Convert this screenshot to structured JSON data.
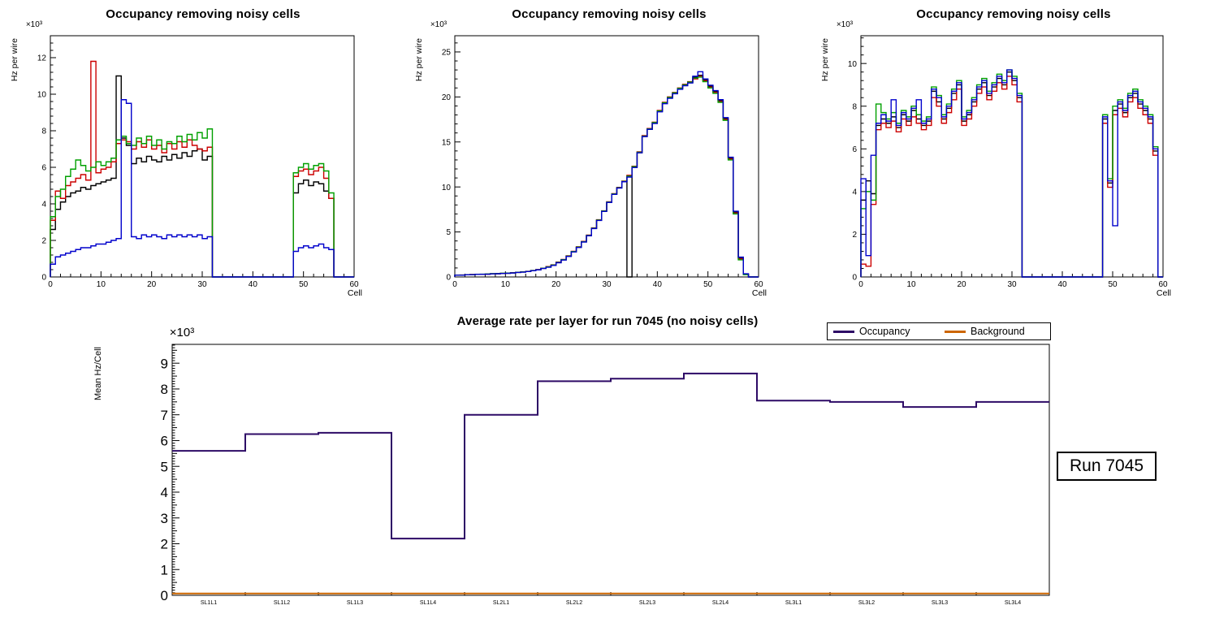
{
  "page": {
    "background": "#ffffff"
  },
  "annotation": {
    "run_label": "Run 7045"
  },
  "chart_data": [
    {
      "type": "histogram-step",
      "title": "Occupancy removing noisy cells",
      "ylabel": "Hz per wire",
      "xlabel": "Cell",
      "exponent": "×10³",
      "values_scale": "×10³",
      "xlim": [
        0,
        60
      ],
      "ylim": [
        0,
        13.2
      ],
      "xticks": {
        "major": 10,
        "minor": 2
      },
      "yticks": {
        "major": 2,
        "minor": 0.4
      },
      "series": [
        {
          "name": "black",
          "color": "#000000",
          "values": [
            2.6,
            3.7,
            4.1,
            4.4,
            4.6,
            4.7,
            4.9,
            4.8,
            5.0,
            5.1,
            5.2,
            5.3,
            5.4,
            11.0,
            7.6,
            7.2,
            6.2,
            6.5,
            6.3,
            6.6,
            6.4,
            6.3,
            6.6,
            6.4,
            6.7,
            6.5,
            6.8,
            6.6,
            6.9,
            7.0,
            6.4,
            6.6,
            0,
            0,
            0,
            0,
            0,
            0,
            0,
            0,
            0,
            0,
            0,
            0,
            0,
            0,
            0,
            0,
            4.6,
            5.1,
            5.3,
            5.0,
            5.2,
            5.1,
            4.7,
            4.3,
            0,
            0,
            0,
            0
          ]
        },
        {
          "name": "red",
          "color": "#cc0000",
          "values": [
            3.1,
            4.7,
            4.3,
            5.0,
            5.2,
            5.4,
            5.6,
            5.3,
            11.8,
            5.7,
            5.9,
            6.0,
            6.3,
            7.3,
            7.5,
            7.4,
            7.0,
            7.4,
            7.1,
            7.5,
            7.0,
            7.2,
            6.8,
            7.3,
            7.0,
            7.4,
            7.1,
            7.5,
            7.2,
            7.0,
            6.9,
            7.1,
            0,
            0,
            0,
            0,
            0,
            0,
            0,
            0,
            0,
            0,
            0,
            0,
            0,
            0,
            0,
            0,
            5.5,
            5.8,
            5.9,
            5.6,
            5.8,
            6.0,
            5.4,
            4.3,
            0,
            0,
            0,
            0
          ]
        },
        {
          "name": "green",
          "color": "#00a000",
          "values": [
            3.3,
            4.4,
            4.8,
            5.5,
            5.9,
            6.4,
            6.1,
            5.8,
            6.0,
            6.3,
            6.1,
            6.3,
            6.5,
            7.5,
            7.7,
            7.3,
            7.2,
            7.6,
            7.3,
            7.7,
            7.2,
            7.5,
            7.0,
            7.4,
            7.3,
            7.7,
            7.4,
            7.8,
            7.5,
            7.9,
            7.6,
            8.1,
            0,
            0,
            0,
            0,
            0,
            0,
            0,
            0,
            0,
            0,
            0,
            0,
            0,
            0,
            0,
            0,
            5.7,
            6.0,
            6.2,
            5.9,
            6.1,
            6.2,
            5.8,
            4.6,
            0,
            0,
            0,
            0
          ]
        },
        {
          "name": "blue",
          "color": "#0000cc",
          "values": [
            0.7,
            1.1,
            1.2,
            1.3,
            1.4,
            1.5,
            1.6,
            1.6,
            1.7,
            1.8,
            1.8,
            1.9,
            2.0,
            2.1,
            9.7,
            9.5,
            2.2,
            2.1,
            2.3,
            2.2,
            2.3,
            2.2,
            2.1,
            2.3,
            2.2,
            2.3,
            2.2,
            2.3,
            2.2,
            2.3,
            2.1,
            2.2,
            0,
            0,
            0,
            0,
            0,
            0,
            0,
            0,
            0,
            0,
            0,
            0,
            0,
            0,
            0,
            0,
            1.4,
            1.6,
            1.7,
            1.6,
            1.7,
            1.8,
            1.6,
            1.5,
            0,
            0,
            0,
            0
          ]
        }
      ]
    },
    {
      "type": "histogram-step",
      "title": "Occupancy removing noisy cells",
      "ylabel": "Hz per wire",
      "xlabel": "Cell",
      "exponent": "×10³",
      "values_scale": "×10³",
      "xlim": [
        0,
        60
      ],
      "ylim": [
        0,
        26.8
      ],
      "xticks": {
        "major": 10,
        "minor": 2
      },
      "yticks": {
        "major": 5,
        "minor": 1
      },
      "series": [
        {
          "name": "black",
          "color": "#000000",
          "values": [
            0.2,
            0.2,
            0.25,
            0.25,
            0.3,
            0.3,
            0.3,
            0.35,
            0.35,
            0.4,
            0.4,
            0.45,
            0.5,
            0.55,
            0.6,
            0.7,
            0.8,
            0.95,
            1.1,
            1.3,
            1.6,
            1.9,
            2.3,
            2.8,
            3.3,
            3.9,
            4.6,
            5.4,
            6.3,
            7.3,
            8.3,
            9.2,
            9.9,
            10.6,
            0,
            12.2,
            13.8,
            15.6,
            16.4,
            17.1,
            18.4,
            19.3,
            19.9,
            20.4,
            20.9,
            21.3,
            21.6,
            22.2,
            22.4,
            21.9,
            21.2,
            20.6,
            19.6,
            17.6,
            13.2,
            7.2,
            2.1,
            0.3,
            0,
            0
          ]
        },
        {
          "name": "red",
          "color": "#cc0000",
          "values": [
            0.2,
            0.22,
            0.25,
            0.27,
            0.3,
            0.3,
            0.32,
            0.35,
            0.37,
            0.4,
            0.42,
            0.47,
            0.52,
            0.57,
            0.62,
            0.72,
            0.82,
            0.97,
            1.15,
            1.35,
            1.65,
            1.95,
            2.35,
            2.85,
            3.35,
            3.95,
            4.65,
            5.45,
            6.35,
            7.35,
            8.35,
            9.25,
            9.95,
            10.65,
            11.3,
            12.3,
            13.9,
            15.7,
            16.5,
            17.2,
            18.5,
            19.4,
            20.0,
            20.5,
            21.0,
            21.4,
            21.7,
            22.0,
            22.3,
            21.8,
            21.1,
            20.5,
            19.5,
            17.5,
            13.1,
            7.1,
            2.0,
            0.3,
            0,
            0
          ]
        },
        {
          "name": "green",
          "color": "#00a000",
          "values": [
            0.2,
            0.21,
            0.24,
            0.26,
            0.29,
            0.31,
            0.33,
            0.36,
            0.38,
            0.41,
            0.43,
            0.46,
            0.51,
            0.56,
            0.61,
            0.71,
            0.81,
            0.96,
            1.12,
            1.32,
            1.62,
            1.92,
            2.32,
            2.82,
            3.32,
            3.92,
            4.62,
            5.42,
            6.32,
            7.32,
            8.32,
            9.22,
            9.92,
            10.62,
            11.2,
            12.25,
            13.85,
            15.65,
            16.45,
            17.15,
            18.45,
            19.35,
            19.95,
            20.45,
            20.95,
            21.35,
            21.65,
            22.1,
            22.2,
            21.7,
            21.0,
            20.4,
            19.4,
            17.4,
            13.0,
            7.0,
            1.9,
            0.25,
            0,
            0
          ]
        },
        {
          "name": "blue",
          "color": "#0000cc",
          "values": [
            0.2,
            0.2,
            0.24,
            0.25,
            0.29,
            0.3,
            0.31,
            0.34,
            0.36,
            0.39,
            0.41,
            0.44,
            0.5,
            0.54,
            0.6,
            0.69,
            0.79,
            0.94,
            1.08,
            1.28,
            1.58,
            1.88,
            2.28,
            2.78,
            3.28,
            3.88,
            4.58,
            5.38,
            6.28,
            7.28,
            8.28,
            9.18,
            9.88,
            10.58,
            11.1,
            12.15,
            13.8,
            15.6,
            16.4,
            17.05,
            18.35,
            19.25,
            19.85,
            20.35,
            20.85,
            21.25,
            21.55,
            22.3,
            22.8,
            22.0,
            21.3,
            20.7,
            19.7,
            17.7,
            13.3,
            7.3,
            2.2,
            0.35,
            0,
            0
          ]
        }
      ]
    },
    {
      "type": "histogram-step",
      "title": "Occupancy removing noisy cells",
      "ylabel": "Hz per wire",
      "xlabel": "Cell",
      "exponent": "×10³",
      "values_scale": "×10³",
      "xlim": [
        0,
        60
      ],
      "ylim": [
        0,
        11.3
      ],
      "xticks": {
        "major": 10,
        "minor": 2
      },
      "yticks": {
        "major": 2,
        "minor": 0.4
      },
      "series": [
        {
          "name": "black",
          "color": "#000000",
          "values": [
            3.6,
            4.5,
            3.9,
            7.1,
            7.4,
            7.2,
            7.5,
            7.0,
            7.6,
            7.3,
            7.8,
            7.4,
            7.1,
            7.3,
            8.7,
            8.2,
            7.4,
            7.9,
            8.6,
            9.0,
            7.3,
            7.6,
            8.2,
            8.8,
            9.1,
            8.5,
            8.9,
            9.3,
            9.0,
            9.6,
            9.2,
            8.4,
            0,
            0,
            0,
            0,
            0,
            0,
            0,
            0,
            0,
            0,
            0,
            0,
            0,
            0,
            0,
            0,
            7.4,
            4.4,
            7.8,
            8.1,
            7.7,
            8.4,
            8.6,
            8.1,
            7.8,
            7.4,
            5.9,
            0
          ]
        },
        {
          "name": "red",
          "color": "#cc0000",
          "values": [
            0.6,
            0.5,
            3.4,
            6.9,
            7.2,
            7.0,
            7.3,
            6.8,
            7.4,
            7.1,
            7.5,
            7.2,
            6.9,
            7.1,
            8.4,
            8.0,
            7.2,
            7.7,
            8.3,
            8.8,
            7.1,
            7.4,
            8.0,
            8.6,
            8.9,
            8.3,
            8.7,
            9.1,
            8.8,
            9.4,
            9.0,
            8.2,
            0,
            0,
            0,
            0,
            0,
            0,
            0,
            0,
            0,
            0,
            0,
            0,
            0,
            0,
            0,
            0,
            7.2,
            4.2,
            7.6,
            7.9,
            7.5,
            8.2,
            8.4,
            7.9,
            7.6,
            7.2,
            5.7,
            0
          ]
        },
        {
          "name": "green",
          "color": "#00a000",
          "values": [
            3.2,
            4.0,
            3.6,
            8.1,
            7.7,
            7.4,
            7.7,
            7.2,
            7.8,
            7.5,
            8.0,
            7.6,
            7.3,
            7.5,
            8.9,
            8.5,
            7.6,
            8.1,
            8.8,
            9.2,
            7.5,
            7.8,
            8.4,
            9.0,
            9.3,
            8.7,
            9.1,
            9.5,
            9.2,
            9.7,
            9.4,
            8.6,
            0,
            0,
            0,
            0,
            0,
            0,
            0,
            0,
            0,
            0,
            0,
            0,
            0,
            0,
            0,
            0,
            7.6,
            4.6,
            8.0,
            8.3,
            7.9,
            8.6,
            8.8,
            8.3,
            8.0,
            7.6,
            6.1,
            0
          ]
        },
        {
          "name": "blue",
          "color": "#0000cc",
          "values": [
            4.6,
            1.0,
            5.7,
            7.2,
            7.6,
            7.3,
            8.3,
            7.1,
            7.7,
            7.4,
            7.9,
            8.3,
            7.2,
            7.4,
            8.8,
            8.4,
            7.5,
            8.0,
            8.7,
            9.1,
            7.4,
            7.7,
            8.3,
            8.9,
            9.2,
            8.6,
            9.0,
            9.4,
            9.1,
            9.7,
            9.3,
            8.5,
            0,
            0,
            0,
            0,
            0,
            0,
            0,
            0,
            0,
            0,
            0,
            0,
            0,
            0,
            0,
            0,
            7.5,
            4.5,
            2.4,
            8.2,
            7.8,
            8.5,
            8.7,
            8.2,
            7.9,
            7.5,
            6.0,
            0
          ]
        }
      ]
    },
    {
      "type": "category-step",
      "title": "Average rate per layer for run 7045 (no noisy cells)",
      "ylabel": "Mean Hz/Cell",
      "exponent": "×10³",
      "values_scale": "×10³",
      "categories": [
        "SL1L1",
        "SL1L2",
        "SL1L3",
        "SL1L4",
        "SL2L1",
        "SL2L2",
        "SL2L3",
        "SL2L4",
        "SL3L1",
        "SL3L2",
        "SL3L3",
        "SL3L4"
      ],
      "ylim": [
        0,
        9.73
      ],
      "yticks": {
        "major": 1,
        "mid": 0.5,
        "minor": 0.1
      },
      "legend": [
        {
          "label": "Occupancy",
          "color": "#2d0a66"
        },
        {
          "label": "Background",
          "color": "#cc6600"
        }
      ],
      "series": [
        {
          "name": "Occupancy",
          "color": "#2d0a66",
          "values": [
            5.6,
            6.25,
            6.3,
            2.2,
            7.0,
            8.3,
            8.4,
            8.6,
            7.55,
            7.5,
            7.3,
            7.5
          ]
        },
        {
          "name": "Background",
          "color": "#cc6600",
          "values": [
            0.07,
            0.07,
            0.07,
            0.07,
            0.07,
            0.07,
            0.07,
            0.07,
            0.07,
            0.07,
            0.07,
            0.07
          ]
        }
      ]
    }
  ]
}
